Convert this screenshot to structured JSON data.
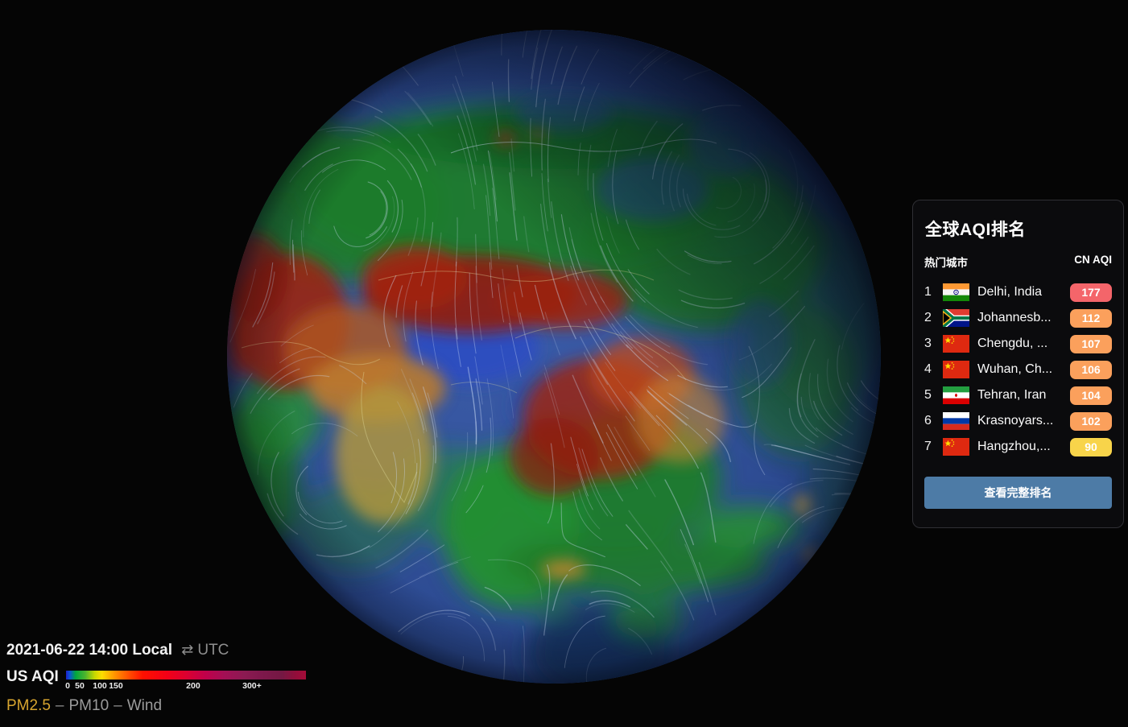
{
  "background_color": "#050505",
  "globe": {
    "ocean": "#33539b",
    "aqi_good_green": "#1f7c2a",
    "aqi_moderate_yellow": "#b3973c",
    "aqi_unhealthy_orange": "#c04a1c",
    "aqi_very_unhealthy_red": "#8e1e0e",
    "no_data_blue": "#2d4dc2",
    "wind_stream": "#cdddf6"
  },
  "clock": {
    "datetime": "2021-06-22 14:00 Local",
    "toggle_icon": "⇄",
    "utc_label": "UTC"
  },
  "scale": {
    "label": "US AQI",
    "gradient": [
      "#2020c8 0%",
      "#0b52d8 1.5%",
      "#00a63e 4%",
      "#4cb42e 8%",
      "#c8d800 12%",
      "#ffdd00 15%",
      "#ff9800 20%",
      "#ff5000 26%",
      "#ff1000 32%",
      "#f30016 42%",
      "#dc0030 50%",
      "#c0004a 58%",
      "#a30f55 66%",
      "#8c1a52 74%",
      "#7d184b 82%",
      "#741843 90%",
      "#930d3a 96%",
      "#a40b38 100%"
    ],
    "ticks": [
      {
        "label": "0",
        "pos": 0.7
      },
      {
        "label": "50",
        "pos": 5.7
      },
      {
        "label": "100",
        "pos": 14.1
      },
      {
        "label": "150",
        "pos": 20.8
      },
      {
        "label": "200",
        "pos": 53.0
      },
      {
        "label": "300+",
        "pos": 77.5
      }
    ]
  },
  "layers": {
    "separator": "–",
    "items": [
      {
        "label": "PM2.5",
        "active": true,
        "color": "#d8a52f"
      },
      {
        "label": "PM10",
        "active": false,
        "color": "#9b9b9b"
      },
      {
        "label": "Wind",
        "active": false,
        "color": "#9b9b9b"
      }
    ]
  },
  "ranking": {
    "title": "全球AQI排名",
    "col_city": "热门城市",
    "col_value": "CN AQI",
    "button_label": "查看完整排名",
    "button_color": "#4d7ba6",
    "rows": [
      {
        "rank": "1",
        "flag": "in",
        "city": "Delhi, India",
        "value": "177",
        "badge_color": "#f4656a"
      },
      {
        "rank": "2",
        "flag": "za",
        "city": "Johannesb...",
        "value": "112",
        "badge_color": "#fba05c"
      },
      {
        "rank": "3",
        "flag": "cn",
        "city": "Chengdu, ...",
        "value": "107",
        "badge_color": "#fba05c"
      },
      {
        "rank": "4",
        "flag": "cn",
        "city": "Wuhan, Ch...",
        "value": "106",
        "badge_color": "#fba05c"
      },
      {
        "rank": "5",
        "flag": "ir",
        "city": "Tehran, Iran",
        "value": "104",
        "badge_color": "#fba05c"
      },
      {
        "rank": "6",
        "flag": "ru",
        "city": "Krasnoyars...",
        "value": "102",
        "badge_color": "#fba05c"
      },
      {
        "rank": "7",
        "flag": "cn",
        "city": "Hangzhou,...",
        "value": "90",
        "badge_color": "#f8d44a"
      }
    ]
  }
}
